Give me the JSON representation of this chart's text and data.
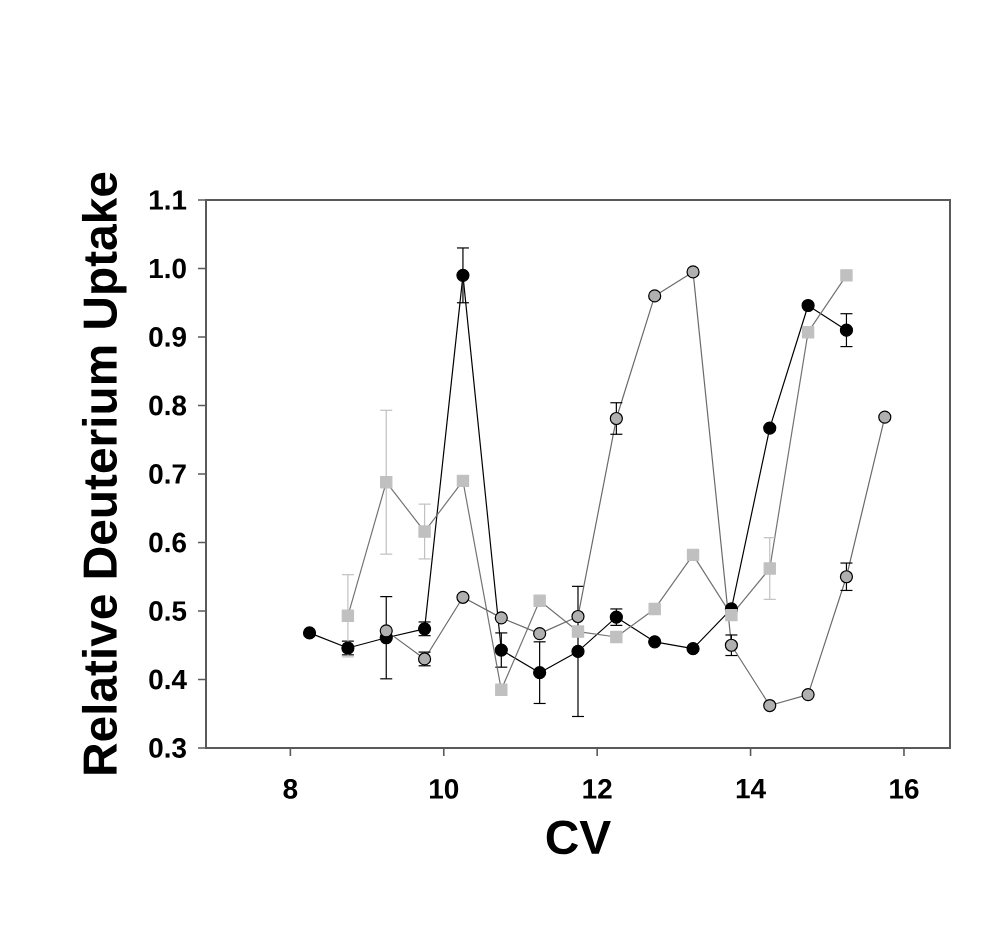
{
  "chart_data": {
    "type": "line",
    "xlabel": "CV",
    "ylabel": "Relative Deuterium Uptake",
    "xlim": [
      6.9,
      16.6
    ],
    "ylim": [
      0.3,
      1.1
    ],
    "xticks": [
      8,
      10,
      12,
      14,
      16
    ],
    "yticks": [
      0.3,
      0.4,
      0.5,
      0.6,
      0.7,
      0.8,
      0.9,
      {
        "value": 1.0,
        "label": "1.0"
      },
      1.1
    ],
    "line_style": "solid",
    "series": [
      {
        "color": "#000000",
        "marker": "circle",
        "x": [
          8.25,
          8.75,
          9.25,
          9.75,
          10.25,
          10.75,
          11.25,
          11.75,
          12.25,
          12.75,
          13.25,
          13.75,
          14.25,
          14.75,
          15.25
        ],
        "values": [
          0.468,
          0.446,
          0.461,
          0.474,
          0.99,
          0.443,
          0.41,
          0.441,
          0.491,
          0.455,
          0.445,
          0.503,
          0.767,
          0.946,
          0.91
        ],
        "errors": [
          null,
          0.01,
          0.06,
          0.01,
          0.04,
          0.025,
          0.045,
          0.095,
          0.012,
          null,
          null,
          null,
          null,
          null,
          0.024
        ]
      },
      {
        "color": "#c0c0c0",
        "marker": "square",
        "x": [
          8.75,
          9.25,
          9.75,
          10.25,
          10.75,
          11.25,
          11.75,
          12.25,
          12.75,
          13.25,
          13.75,
          14.25,
          14.75,
          15.25
        ],
        "values": [
          0.493,
          0.688,
          0.616,
          0.69,
          0.385,
          0.515,
          0.47,
          0.462,
          0.503,
          0.582,
          0.494,
          0.562,
          0.907,
          0.99
        ],
        "errors": [
          0.06,
          0.105,
          0.04,
          null,
          null,
          null,
          null,
          null,
          null,
          null,
          null,
          0.045,
          null,
          null
        ]
      },
      {
        "color": "#b0b0b0",
        "marker": "circle",
        "x": [
          9.25,
          9.75,
          10.25,
          10.75,
          11.25,
          11.75,
          12.25,
          12.75,
          13.25,
          13.75,
          14.25,
          14.75,
          15.25,
          15.75
        ],
        "values": [
          0.471,
          0.43,
          0.52,
          0.49,
          0.467,
          0.492,
          0.781,
          0.96,
          0.995,
          0.45,
          0.362,
          0.378,
          0.55,
          0.783
        ],
        "errors": [
          null,
          0.01,
          null,
          null,
          null,
          null,
          0.023,
          null,
          null,
          0.015,
          null,
          null,
          0.02,
          null
        ]
      }
    ]
  }
}
